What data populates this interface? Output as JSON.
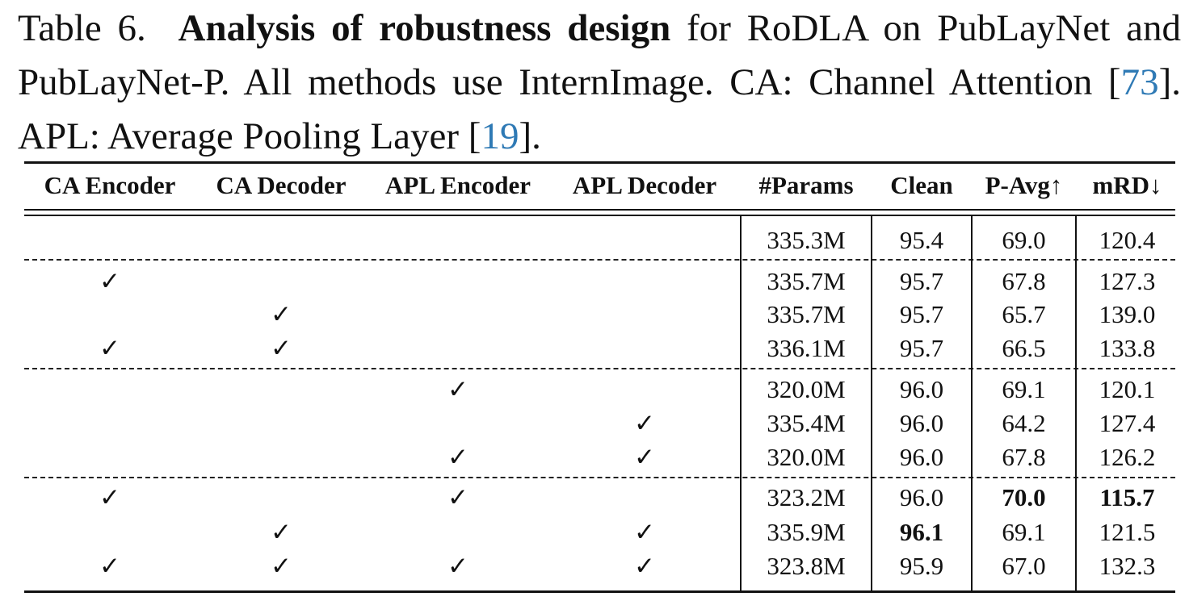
{
  "caption": {
    "label": "Table 6.",
    "bold_title": "Analysis of robustness design",
    "text_a": " for RoDLA on PubLayNet and PubLayNet-P. All methods use InternImage. CA: Channel Attention [",
    "cite_a": "73",
    "text_b": "]. APL: Average Pooling Layer [",
    "cite_b": "19",
    "text_c": "]."
  },
  "table": {
    "headers": [
      "CA Encoder",
      "CA Decoder",
      "APL Encoder",
      "APL Decoder",
      "#Params",
      "Clean",
      "P-Avg↑",
      "mRD↓"
    ],
    "check_mark": "✓",
    "rows": [
      {
        "ca_enc": false,
        "ca_dec": false,
        "apl_enc": false,
        "apl_dec": false,
        "params": "335.3M",
        "clean": "95.4",
        "pavg": "69.0",
        "mrd": "120.4"
      },
      {
        "ca_enc": true,
        "ca_dec": false,
        "apl_enc": false,
        "apl_dec": false,
        "params": "335.7M",
        "clean": "95.7",
        "pavg": "67.8",
        "mrd": "127.3"
      },
      {
        "ca_enc": false,
        "ca_dec": true,
        "apl_enc": false,
        "apl_dec": false,
        "params": "335.7M",
        "clean": "95.7",
        "pavg": "65.7",
        "mrd": "139.0"
      },
      {
        "ca_enc": true,
        "ca_dec": true,
        "apl_enc": false,
        "apl_dec": false,
        "params": "336.1M",
        "clean": "95.7",
        "pavg": "66.5",
        "mrd": "133.8"
      },
      {
        "ca_enc": false,
        "ca_dec": false,
        "apl_enc": true,
        "apl_dec": false,
        "params": "320.0M",
        "clean": "96.0",
        "pavg": "69.1",
        "mrd": "120.1"
      },
      {
        "ca_enc": false,
        "ca_dec": false,
        "apl_enc": false,
        "apl_dec": true,
        "params": "335.4M",
        "clean": "96.0",
        "pavg": "64.2",
        "mrd": "127.4"
      },
      {
        "ca_enc": false,
        "ca_dec": false,
        "apl_enc": true,
        "apl_dec": true,
        "params": "320.0M",
        "clean": "96.0",
        "pavg": "67.8",
        "mrd": "126.2"
      },
      {
        "ca_enc": true,
        "ca_dec": false,
        "apl_enc": true,
        "apl_dec": false,
        "params": "323.2M",
        "clean": "96.0",
        "pavg": "70.0",
        "mrd": "115.7",
        "bold": [
          "pavg",
          "mrd"
        ]
      },
      {
        "ca_enc": false,
        "ca_dec": true,
        "apl_enc": false,
        "apl_dec": true,
        "params": "335.9M",
        "clean": "96.1",
        "pavg": "69.1",
        "mrd": "121.5",
        "bold": [
          "clean"
        ]
      },
      {
        "ca_enc": true,
        "ca_dec": true,
        "apl_enc": true,
        "apl_dec": true,
        "params": "323.8M",
        "clean": "95.9",
        "pavg": "67.0",
        "mrd": "132.3"
      }
    ]
  }
}
